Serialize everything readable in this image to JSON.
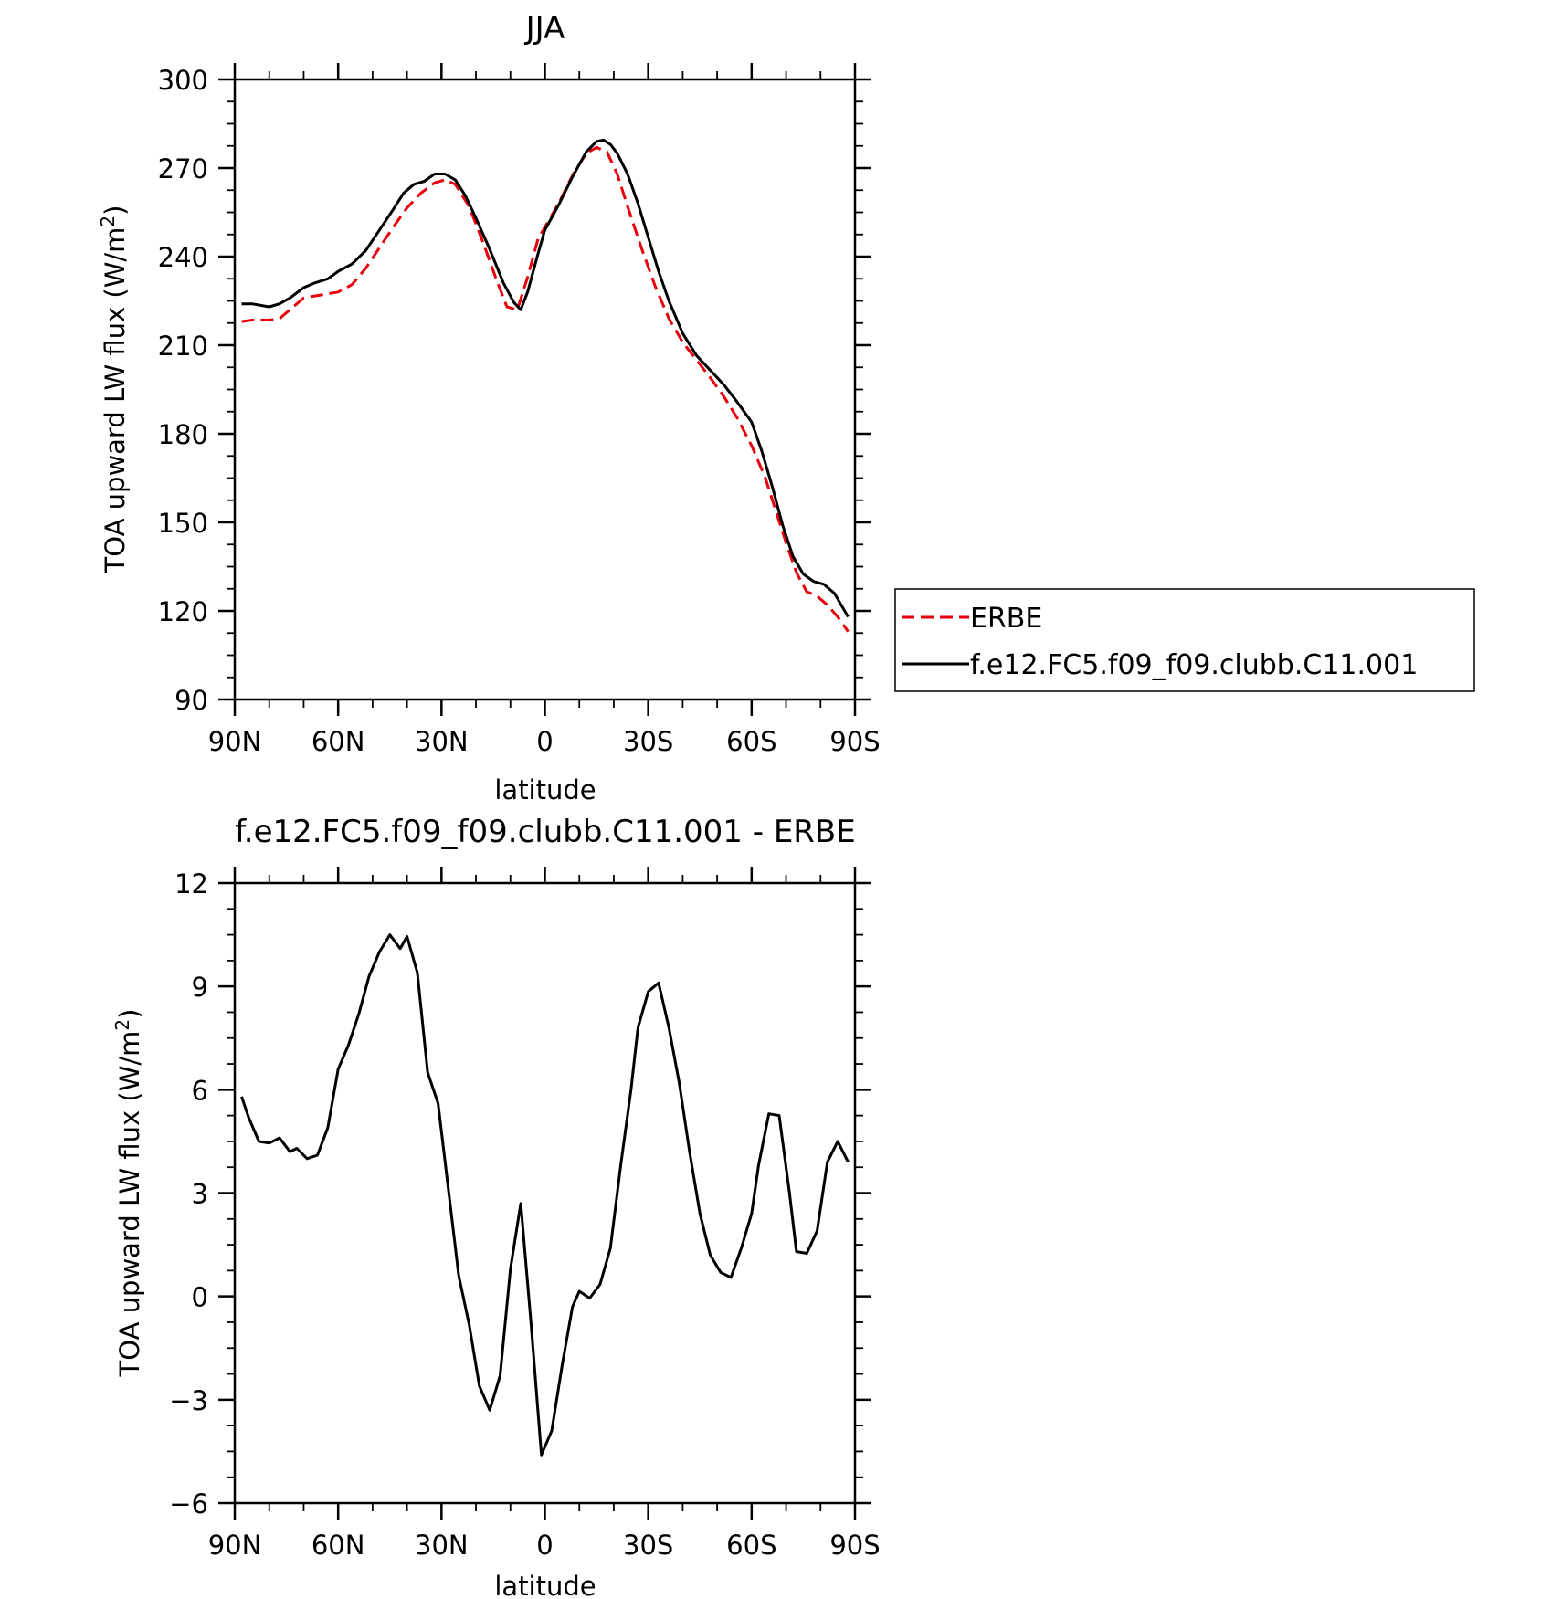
{
  "chart_data": [
    {
      "type": "line",
      "title": "JJA",
      "xlabel": "latitude",
      "ylabel": "TOA upward LW flux (W/m²)",
      "ylabel_parts": {
        "main": "TOA upward LW flux (W/m",
        "sup": "2",
        "tail": ")"
      },
      "x_ticks": [
        {
          "value": -90,
          "label": "90N"
        },
        {
          "value": -60,
          "label": "60N"
        },
        {
          "value": -30,
          "label": "30N"
        },
        {
          "value": 0,
          "label": "0"
        },
        {
          "value": 30,
          "label": "30S"
        },
        {
          "value": 60,
          "label": "60S"
        },
        {
          "value": 90,
          "label": "90S"
        }
      ],
      "y_ticks": [
        "300",
        "270",
        "240",
        "210",
        "180",
        "150",
        "120",
        "90"
      ],
      "ylim": [
        90,
        300
      ],
      "xlim": [
        -90,
        90
      ],
      "grid": false,
      "legend_position": "right",
      "series": [
        {
          "name": "ERBE",
          "color": "#e8000b",
          "dash": "dashed",
          "x": [
            -88,
            -85,
            -80,
            -77,
            -74,
            -70,
            -65,
            -60,
            -56,
            -52,
            -48,
            -44,
            -40,
            -36,
            -32,
            -29,
            -26,
            -22,
            -18,
            -14,
            -11,
            -8,
            -5,
            -2,
            0,
            4,
            8,
            12,
            15,
            18,
            21,
            24,
            28,
            32,
            36,
            40,
            44,
            48,
            52,
            56,
            60,
            64,
            67,
            70,
            73,
            76,
            79,
            82,
            85,
            88
          ],
          "values": [
            218,
            218.5,
            218.5,
            219,
            222,
            226,
            227,
            228,
            230.5,
            236,
            243,
            250,
            256.5,
            261.5,
            265,
            266,
            264.5,
            257,
            245,
            232,
            223,
            222,
            233,
            246,
            250,
            258,
            267.5,
            275,
            277,
            275.5,
            268,
            257,
            243,
            230,
            219,
            211,
            205,
            199,
            192.5,
            185,
            176,
            165,
            154,
            143,
            133,
            126.5,
            125,
            122,
            118,
            113
          ]
        },
        {
          "name": "f.e12.FC5.f09_f09.clubb.C11.001",
          "color": "#000000",
          "dash": "solid",
          "x": [
            -88,
            -85,
            -80,
            -77,
            -74,
            -70,
            -67,
            -63,
            -60,
            -56,
            -52,
            -48,
            -44,
            -41,
            -38,
            -35,
            -32,
            -29,
            -26,
            -23,
            -20,
            -16,
            -12,
            -9,
            -7,
            -5,
            -2,
            0,
            4,
            8,
            12,
            15,
            17,
            19,
            21,
            24,
            27,
            30,
            33,
            36,
            40,
            44,
            48,
            52,
            56,
            60,
            63,
            66,
            69,
            72,
            75,
            78,
            81,
            84,
            86,
            88
          ],
          "values": [
            224,
            224,
            223,
            224,
            226,
            229.5,
            231,
            232.5,
            235,
            237.5,
            242,
            249,
            256,
            261.5,
            264.5,
            265.5,
            268,
            268,
            266,
            260.5,
            253,
            242.5,
            231,
            224.5,
            222,
            228,
            241,
            249,
            257.5,
            267,
            275.5,
            279,
            279.5,
            278,
            275,
            268,
            258,
            246.5,
            235,
            225,
            214,
            206.5,
            201.5,
            196.5,
            190.5,
            184,
            174,
            162,
            149,
            138.5,
            132.5,
            130,
            129,
            126,
            122,
            118
          ]
        }
      ]
    },
    {
      "type": "line",
      "title": "f.e12.FC5.f09_f09.clubb.C11.001 - ERBE",
      "xlabel": "latitude",
      "ylabel": "TOA upward LW flux (W/m²)",
      "ylabel_parts": {
        "main": "TOA upward LW flux (W/m",
        "sup": "2",
        "tail": ")"
      },
      "x_ticks": [
        {
          "value": -90,
          "label": "90N"
        },
        {
          "value": -60,
          "label": "60N"
        },
        {
          "value": -30,
          "label": "30N"
        },
        {
          "value": 0,
          "label": "0"
        },
        {
          "value": 30,
          "label": "30S"
        },
        {
          "value": 60,
          "label": "60S"
        },
        {
          "value": 90,
          "label": "90S"
        }
      ],
      "y_ticks": [
        "12",
        "9",
        "6",
        "3",
        "0",
        "−3",
        "−6"
      ],
      "ylim": [
        -6,
        12
      ],
      "xlim": [
        -90,
        90
      ],
      "grid": false,
      "series": [
        {
          "name": "",
          "color": "#000000",
          "dash": "solid",
          "x": [
            -88,
            -86,
            -83,
            -80,
            -77,
            -74,
            -72,
            -69,
            -66,
            -63,
            -60,
            -57,
            -54,
            -51,
            -48,
            -45,
            -42,
            -40,
            -37,
            -34,
            -31,
            -28,
            -25,
            -22,
            -19,
            -16,
            -13,
            -10,
            -7,
            -4,
            -1,
            2,
            5,
            8,
            10,
            13,
            16,
            19,
            22,
            25,
            27,
            30,
            33,
            36,
            39,
            42,
            45,
            48,
            51,
            54,
            57,
            60,
            62,
            65,
            68,
            71,
            73,
            76,
            79,
            82,
            85,
            88
          ],
          "values": [
            5.8,
            5.2,
            4.5,
            4.45,
            4.6,
            4.2,
            4.3,
            4.0,
            4.1,
            4.9,
            6.6,
            7.3,
            8.2,
            9.3,
            10.0,
            10.5,
            10.1,
            10.45,
            9.4,
            6.5,
            5.6,
            3.1,
            0.6,
            -0.8,
            -2.6,
            -3.3,
            -2.3,
            0.8,
            2.7,
            -0.8,
            -4.6,
            -3.9,
            -2.0,
            -0.3,
            0.15,
            -0.05,
            0.35,
            1.4,
            3.8,
            6.0,
            7.8,
            8.85,
            9.1,
            7.8,
            6.2,
            4.2,
            2.4,
            1.2,
            0.7,
            0.55,
            1.4,
            2.4,
            3.8,
            5.3,
            5.25,
            3.0,
            1.3,
            1.25,
            1.9,
            3.9,
            4.5,
            3.9
          ]
        }
      ]
    }
  ]
}
